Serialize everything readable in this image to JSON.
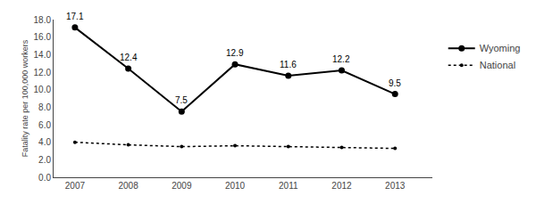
{
  "chart_data": {
    "type": "line",
    "x": [
      2007,
      2008,
      2009,
      2010,
      2011,
      2012,
      2013
    ],
    "series": [
      {
        "name": "Wyoming",
        "color": "#000000",
        "values": [
          17.1,
          12.4,
          7.5,
          12.9,
          11.6,
          12.2,
          9.5
        ],
        "line_style": "solid",
        "marker": "circle",
        "data_labels": true
      },
      {
        "name": "National",
        "color": "#000000",
        "values": [
          4.0,
          3.7,
          3.5,
          3.6,
          3.5,
          3.4,
          3.3
        ],
        "line_style": "dotted",
        "marker": "dot"
      }
    ],
    "ylabel": "Fatality rate per 100,000 workers",
    "xlim": [
      2006.6,
      2013.7
    ],
    "xticks": [
      2007,
      2008,
      2009,
      2010,
      2011,
      2012,
      2013
    ],
    "ylim": [
      0.0,
      18.0
    ],
    "yticks": [
      {
        "value": 0.0,
        "label": "0.0"
      },
      {
        "value": 2.0,
        "label": "2.0"
      },
      {
        "value": 4.0,
        "label": "4.0"
      },
      {
        "value": 6.0,
        "label": "6.0"
      },
      {
        "value": 8.0,
        "label": "8.0"
      },
      {
        "value": 10.0,
        "label": "10.0"
      },
      {
        "value": 12.0,
        "label": "12.0"
      },
      {
        "value": 14.0,
        "label": "14.0"
      },
      {
        "value": 16.0,
        "label": "16.0"
      },
      {
        "value": 18.0,
        "label": "18.0"
      }
    ],
    "grid": false,
    "legend": "right"
  }
}
